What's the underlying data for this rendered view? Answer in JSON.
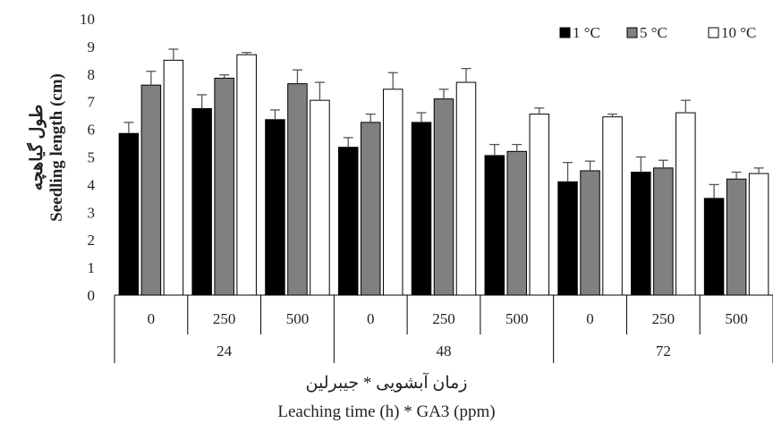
{
  "chart_data": {
    "type": "bar",
    "ylabel_fa": "طول گیاهچه",
    "ylabel": "Seedling length (cm)",
    "xlabel_fa": "زمان آبشویی * جیبرلین",
    "xlabel": "Leaching time (h) * GA3 (ppm)",
    "ylim": [
      0,
      10
    ],
    "yticks": [
      "0",
      "1",
      "2",
      "3",
      "4",
      "5",
      "6",
      "7",
      "8",
      "9",
      "10"
    ],
    "groups": [
      {
        "label": "24",
        "categories": [
          "0",
          "250",
          "500"
        ]
      },
      {
        "label": "48",
        "categories": [
          "0",
          "250",
          "500"
        ]
      },
      {
        "label": "72",
        "categories": [
          "0",
          "250",
          "500"
        ]
      }
    ],
    "series": [
      {
        "name": "1 °C",
        "color": "#000000",
        "values": [
          5.85,
          6.75,
          6.35,
          5.35,
          6.25,
          5.05,
          4.1,
          4.45,
          3.5
        ],
        "errors": [
          0.4,
          0.5,
          0.35,
          0.35,
          0.35,
          0.4,
          0.7,
          0.55,
          0.5
        ]
      },
      {
        "name": "5  °C",
        "color": "#808080",
        "values": [
          7.6,
          7.85,
          7.65,
          6.25,
          7.1,
          5.2,
          4.5,
          4.6,
          4.2
        ],
        "errors": [
          0.5,
          0.12,
          0.5,
          0.3,
          0.35,
          0.25,
          0.35,
          0.28,
          0.25
        ]
      },
      {
        "name": "10  °C",
        "color": "#ffffff",
        "values": [
          8.5,
          8.7,
          7.05,
          7.45,
          7.7,
          6.55,
          6.45,
          6.6,
          4.4
        ],
        "errors": [
          0.4,
          0.08,
          0.65,
          0.6,
          0.5,
          0.22,
          0.1,
          0.45,
          0.2
        ]
      }
    ],
    "legend_position": "top-right",
    "grid": false
  }
}
